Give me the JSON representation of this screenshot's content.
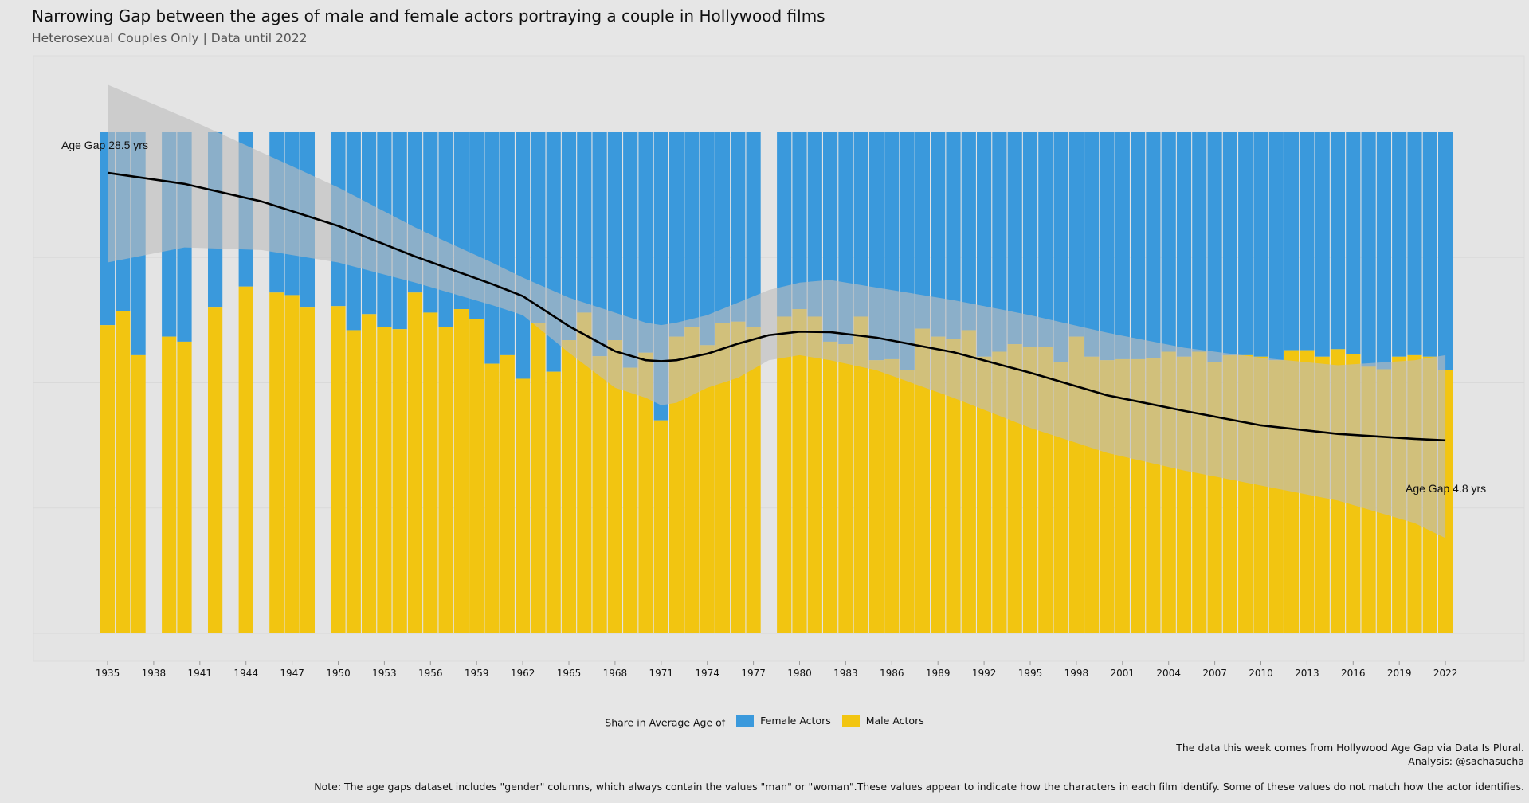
{
  "header": {
    "title": "Narrowing Gap between the ages of male and female actors portraying a couple in Hollywood films",
    "subtitle": "Heterosexual Couples Only | Data until 2022"
  },
  "legend": {
    "title": "Share in Average Age of",
    "female_label": "Female Actors",
    "male_label": "Male Actors"
  },
  "footer": {
    "source": "The data this week comes from Hollywood Age Gap via Data Is Plural.",
    "analysis": "Analysis: @sachasucha",
    "note": "Note: The age gaps dataset includes \"gender\" columns, which always contain the values \"man\" or \"woman\".These values appear to indicate how the characters in each film identify. Some of these values do not match how the actor identifies."
  },
  "colors": {
    "female": "#3a99dc",
    "male": "#f2c511",
    "band": "#bdbdbd",
    "line": "#000000",
    "background": "#e6e6e6",
    "grid": "#d9d9d9"
  },
  "chart_data": {
    "type": "bar",
    "stacked": true,
    "x_tick_labels": [
      "1935",
      "1938",
      "1941",
      "1944",
      "1947",
      "1950",
      "1953",
      "1956",
      "1959",
      "1962",
      "1965",
      "1968",
      "1971",
      "1974",
      "1977",
      "1980",
      "1983",
      "1986",
      "1989",
      "1992",
      "1995",
      "1998",
      "2001",
      "2004",
      "2007",
      "2010",
      "2013",
      "2016",
      "2019",
      "2022"
    ],
    "years": [
      1935,
      1936,
      1937,
      1939,
      1940,
      1942,
      1944,
      1946,
      1947,
      1948,
      1950,
      1951,
      1952,
      1953,
      1954,
      1955,
      1956,
      1957,
      1958,
      1959,
      1960,
      1961,
      1962,
      1963,
      1964,
      1965,
      1966,
      1967,
      1968,
      1969,
      1970,
      1971,
      1972,
      1973,
      1974,
      1975,
      1976,
      1977,
      1979,
      1980,
      1981,
      1982,
      1983,
      1984,
      1985,
      1986,
      1987,
      1988,
      1989,
      1990,
      1991,
      1992,
      1993,
      1994,
      1995,
      1996,
      1997,
      1998,
      1999,
      2000,
      2001,
      2002,
      2003,
      2004,
      2005,
      2006,
      2007,
      2008,
      2009,
      2010,
      2011,
      2012,
      2013,
      2014,
      2015,
      2016,
      2017,
      2018,
      2019,
      2020,
      2021,
      2022
    ],
    "male_share": [
      0.615,
      0.643,
      0.555,
      0.592,
      0.582,
      0.65,
      0.692,
      0.68,
      0.675,
      0.65,
      0.653,
      0.605,
      0.637,
      0.612,
      0.607,
      0.68,
      0.64,
      0.612,
      0.647,
      0.627,
      0.538,
      0.555,
      0.508,
      0.62,
      0.522,
      0.585,
      0.64,
      0.553,
      0.585,
      0.53,
      0.56,
      0.425,
      0.592,
      0.612,
      0.575,
      0.62,
      0.622,
      0.612,
      0.632,
      0.647,
      0.632,
      0.582,
      0.577,
      0.632,
      0.545,
      0.547,
      0.525,
      0.608,
      0.592,
      0.587,
      0.605,
      0.552,
      0.562,
      0.577,
      0.572,
      0.572,
      0.542,
      0.592,
      0.552,
      0.545,
      0.547,
      0.547,
      0.55,
      0.562,
      0.552,
      0.562,
      0.542,
      0.555,
      0.555,
      0.552,
      0.545,
      0.565,
      0.565,
      0.552,
      0.567,
      0.557,
      0.532,
      0.527,
      0.552,
      0.555,
      0.552,
      0.525
    ],
    "age_gap_labels": {
      "start": "Age Gap 28.5 yrs",
      "end": "Age Gap 4.8 yrs"
    },
    "trend_x": [
      1935,
      1940,
      1945,
      1950,
      1955,
      1960,
      1962,
      1965,
      1968,
      1970,
      1971,
      1972,
      1974,
      1976,
      1978,
      1980,
      1982,
      1985,
      1990,
      1995,
      2000,
      2005,
      2010,
      2015,
      2020,
      2022
    ],
    "trend_share": [
      0.919,
      0.897,
      0.862,
      0.813,
      0.752,
      0.697,
      0.673,
      0.613,
      0.563,
      0.545,
      0.543,
      0.545,
      0.558,
      0.578,
      0.595,
      0.602,
      0.601,
      0.59,
      0.561,
      0.52,
      0.475,
      0.444,
      0.415,
      0.398,
      0.388,
      0.385
    ],
    "band_upper": [
      1.095,
      1.03,
      0.96,
      0.89,
      0.81,
      0.74,
      0.71,
      0.67,
      0.64,
      0.62,
      0.615,
      0.62,
      0.635,
      0.66,
      0.685,
      0.7,
      0.705,
      0.69,
      0.665,
      0.635,
      0.6,
      0.57,
      0.55,
      0.535,
      0.545,
      0.555
    ],
    "band_lower": [
      0.74,
      0.77,
      0.765,
      0.74,
      0.7,
      0.655,
      0.635,
      0.56,
      0.49,
      0.47,
      0.455,
      0.46,
      0.49,
      0.51,
      0.545,
      0.555,
      0.545,
      0.525,
      0.47,
      0.41,
      0.36,
      0.325,
      0.295,
      0.265,
      0.22,
      0.19
    ],
    "ylim": [
      0,
      1.15
    ]
  }
}
